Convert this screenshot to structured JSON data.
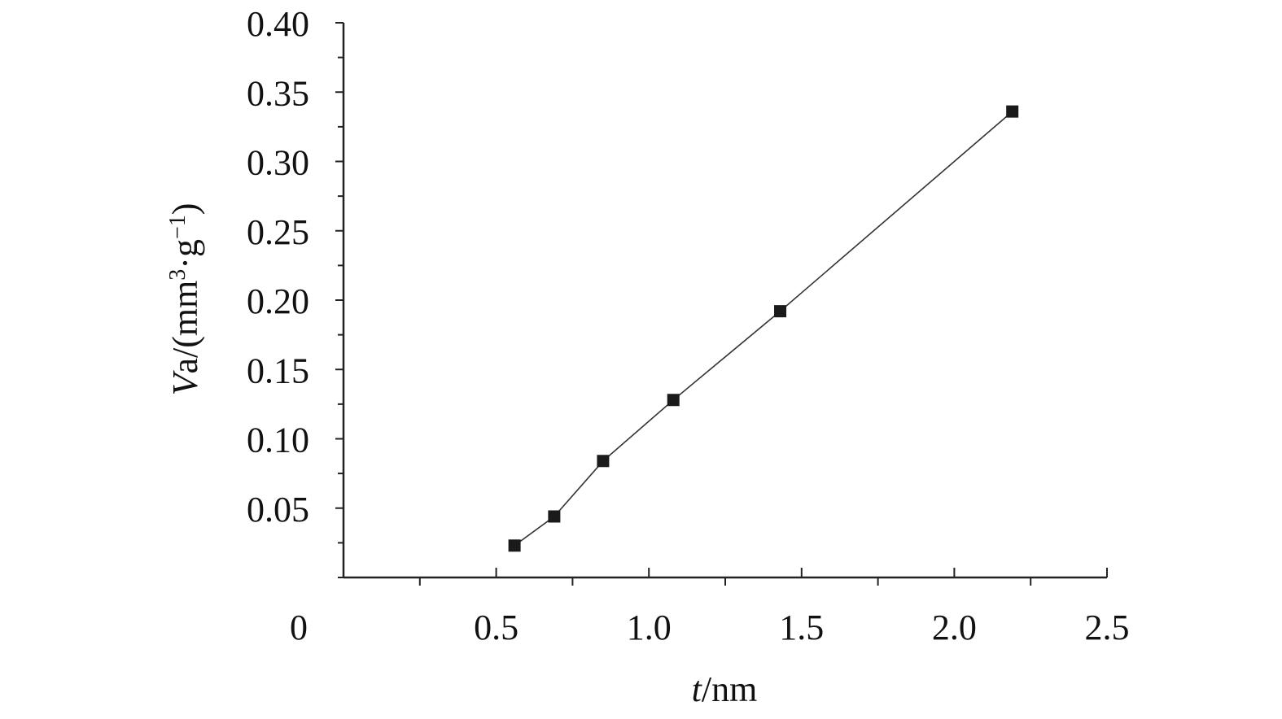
{
  "chart_data": {
    "type": "line",
    "x": [
      0.56,
      0.69,
      0.85,
      1.08,
      1.43,
      2.19
    ],
    "series": [
      {
        "values": [
          0.023,
          0.044,
          0.084,
          0.128,
          0.192,
          0.336
        ]
      }
    ],
    "xlim": [
      0,
      2.5
    ],
    "ylim": [
      0,
      0.4
    ],
    "x_ticks": [
      "0",
      "0.5",
      "1.0",
      "1.5",
      "2.0",
      "2.5"
    ],
    "y_ticks": [
      "0.05",
      "0.10",
      "0.15",
      "0.20",
      "0.25",
      "0.30",
      "0.35",
      "0.40"
    ],
    "xlabel": {
      "italic": "t",
      "rest": "/nm"
    },
    "ylabel": {
      "italic": "V",
      "rest": "a/(mm",
      "sup1": "3",
      "mid": "·g",
      "sup2": "−1",
      "end": ")"
    },
    "marker": "square",
    "grid": false,
    "legend": "none",
    "colors": {
      "line": "#333333",
      "marker": "#1a1a1a",
      "axis": "#222222"
    }
  }
}
